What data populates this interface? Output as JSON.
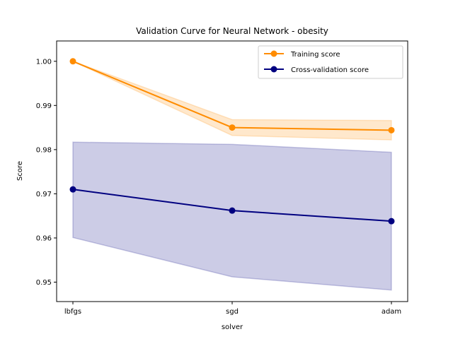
{
  "chart_data": {
    "type": "line",
    "title": "Validation Curve for Neural Network - obesity",
    "xlabel": "solver",
    "ylabel": "Score",
    "categories": [
      "lbfgs",
      "sgd",
      "adam"
    ],
    "ylim": [
      0.9456,
      1.0046
    ],
    "yticks": [
      0.95,
      0.96,
      0.97,
      0.98,
      0.99,
      1.0
    ],
    "ytick_labels": [
      "0.95",
      "0.96",
      "0.97",
      "0.98",
      "0.99",
      "1.00"
    ],
    "grid": false,
    "legend_position": "top-right",
    "series": [
      {
        "name": "Training score",
        "color": "#ff8c00",
        "values": [
          1.0,
          0.985,
          0.9844
        ],
        "band_low": [
          1.0,
          0.9832,
          0.9822
        ],
        "band_high": [
          1.0,
          0.9868,
          0.9866
        ]
      },
      {
        "name": "Cross-validation score",
        "color": "#000080",
        "values": [
          0.971,
          0.9662,
          0.9638
        ],
        "band_low": [
          0.9601,
          0.9512,
          0.9482
        ],
        "band_high": [
          0.9817,
          0.9812,
          0.9794
        ]
      }
    ]
  }
}
